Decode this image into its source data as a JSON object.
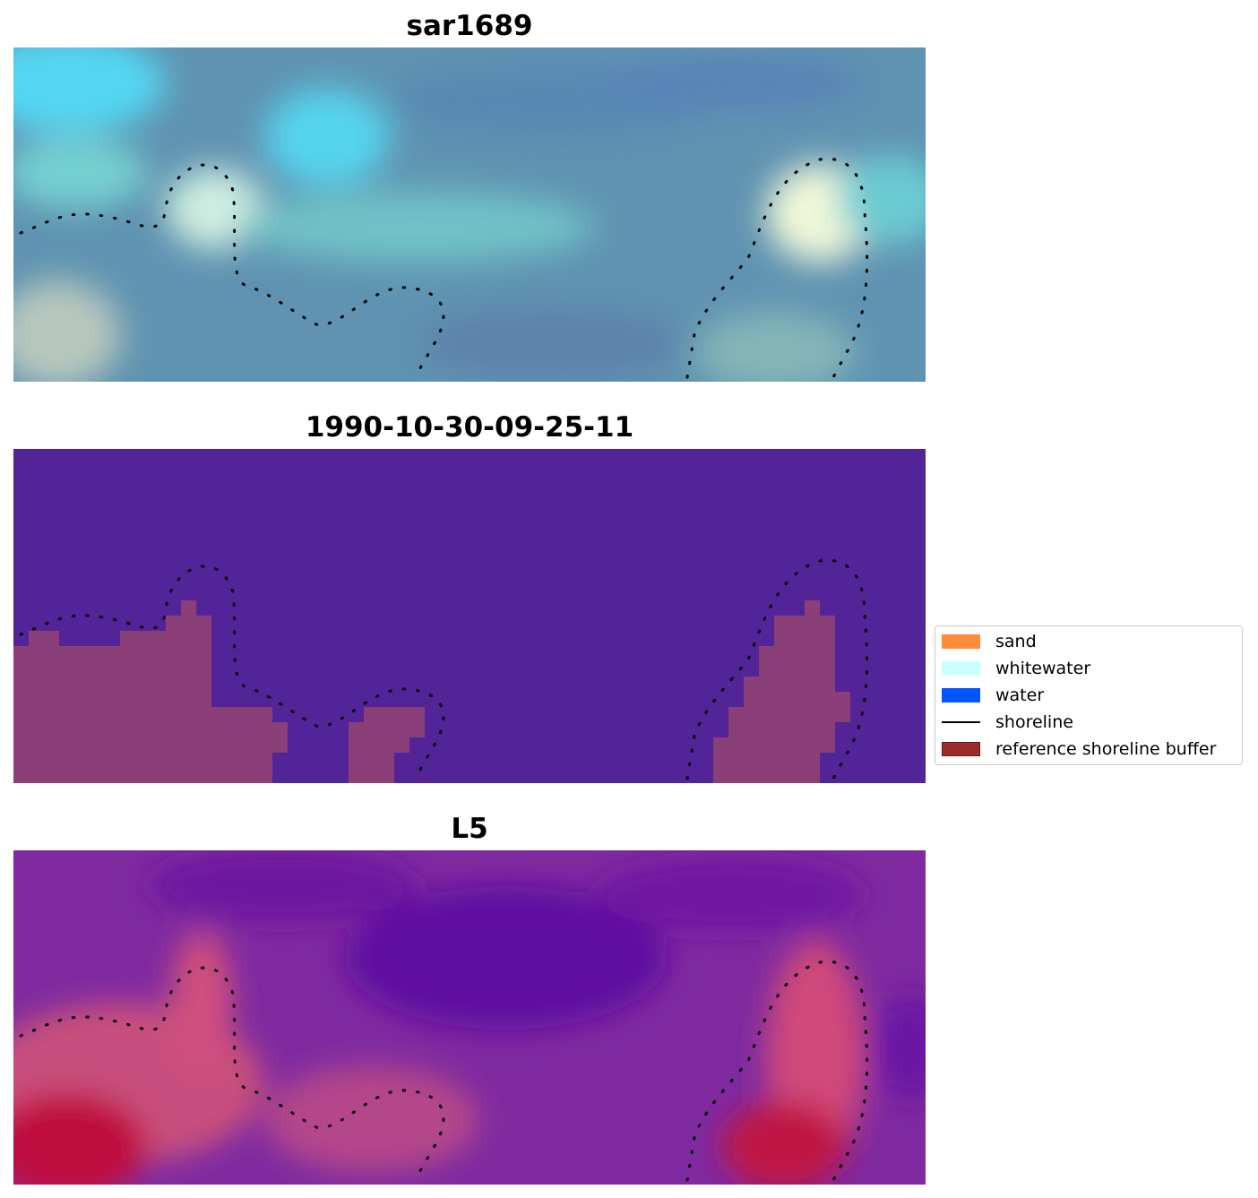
{
  "panels": [
    {
      "title": "sar1689",
      "kind": "rgb-composite"
    },
    {
      "title": "1990-10-30-09-25-11",
      "kind": "classification"
    },
    {
      "title": "L5",
      "kind": "index-map"
    }
  ],
  "legend": {
    "placement": "center-right",
    "items": [
      {
        "label": "sand",
        "color": "#ff8c3a",
        "type": "patch"
      },
      {
        "label": "whitewater",
        "color": "#c8ffff",
        "type": "patch"
      },
      {
        "label": "water",
        "color": "#0055ff",
        "type": "patch"
      },
      {
        "label": "shoreline",
        "color": "#000000",
        "type": "line"
      },
      {
        "label": "reference shoreline buffer",
        "color": "#9b2d2d",
        "type": "patch"
      }
    ]
  },
  "colors": {
    "classification_background": "#532497",
    "buffer_fill": "#8a3f78",
    "shoreline_dots": "#000000"
  }
}
